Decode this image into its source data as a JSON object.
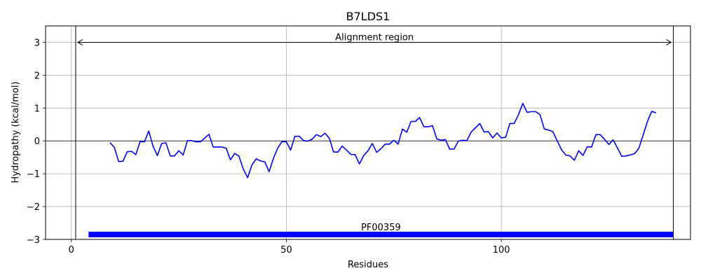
{
  "chart_data": {
    "type": "line",
    "title": "B7LDS1",
    "xlabel": "Residues",
    "ylabel": "Hydropathy (kcal/mol)",
    "xlim": [
      -6,
      144
    ],
    "ylim": [
      -3,
      3.5
    ],
    "xticks": [
      0,
      50,
      100
    ],
    "yticks": [
      -3,
      -2,
      -1,
      0,
      1,
      2,
      3
    ],
    "grid": true,
    "zero_line": true,
    "alignment_region": {
      "label": "Alignment region",
      "start": 1,
      "end": 140,
      "y": 3
    },
    "domain_bar": {
      "label": "PF00359",
      "start": 4,
      "end": 140,
      "y": -2.85
    },
    "series": [
      {
        "color": "#0000ff",
        "x": [
          9,
          10,
          11,
          12,
          13,
          14,
          15,
          16,
          17,
          18,
          19,
          20,
          21,
          22,
          23,
          24,
          25,
          26,
          27,
          28,
          29,
          30,
          31,
          32,
          33,
          34,
          35,
          36,
          37,
          38,
          39,
          40,
          41,
          42,
          43,
          44,
          45,
          46,
          47,
          48,
          49,
          50,
          51,
          52,
          53,
          54,
          55,
          56,
          57,
          58,
          59,
          60,
          61,
          62,
          63,
          64,
          65,
          66,
          67,
          68,
          69,
          70,
          71,
          72,
          73,
          74,
          75,
          76,
          77,
          78,
          79,
          80,
          81,
          82,
          83,
          84,
          85,
          86,
          87,
          88,
          89,
          90,
          91,
          92,
          93,
          94,
          95,
          96,
          97,
          98,
          99,
          100,
          101,
          102,
          103,
          104,
          105,
          106,
          107,
          108,
          109,
          110,
          111,
          112,
          113,
          114,
          115,
          116,
          117,
          118,
          119,
          120,
          121,
          122,
          123,
          124,
          125,
          126,
          127,
          128,
          129,
          130,
          131,
          132,
          133,
          134,
          135,
          136
        ],
        "y": [
          -0.05,
          -0.2,
          -0.63,
          -0.62,
          -0.33,
          -0.32,
          -0.42,
          -0.02,
          -0.03,
          0.3,
          -0.16,
          -0.45,
          -0.08,
          -0.06,
          -0.46,
          -0.46,
          -0.3,
          -0.43,
          0.01,
          0.01,
          -0.03,
          -0.03,
          0.08,
          0.2,
          -0.19,
          -0.19,
          -0.19,
          -0.22,
          -0.58,
          -0.38,
          -0.47,
          -0.86,
          -1.12,
          -0.73,
          -0.55,
          -0.61,
          -0.64,
          -0.94,
          -0.53,
          -0.22,
          -0.02,
          -0.03,
          -0.28,
          0.14,
          0.14,
          0.01,
          -0.01,
          0.05,
          0.19,
          0.13,
          0.23,
          0.08,
          -0.34,
          -0.34,
          -0.16,
          -0.28,
          -0.41,
          -0.42,
          -0.7,
          -0.45,
          -0.3,
          -0.08,
          -0.35,
          -0.24,
          -0.1,
          -0.1,
          0.02,
          -0.1,
          0.36,
          0.26,
          0.59,
          0.59,
          0.71,
          0.43,
          0.43,
          0.46,
          0.06,
          0.02,
          0.04,
          -0.25,
          -0.25,
          -0.01,
          0.02,
          0.01,
          0.27,
          0.4,
          0.53,
          0.27,
          0.28,
          0.09,
          0.24,
          0.09,
          0.11,
          0.53,
          0.53,
          0.8,
          1.14,
          0.87,
          0.89,
          0.89,
          0.8,
          0.36,
          0.33,
          0.28,
          0.0,
          -0.27,
          -0.43,
          -0.46,
          -0.59,
          -0.3,
          -0.44,
          -0.18,
          -0.19,
          0.19,
          0.19,
          0.05,
          -0.11,
          0.03,
          -0.21,
          -0.47,
          -0.46,
          -0.43,
          -0.39,
          -0.22,
          0.18,
          0.6,
          0.9,
          0.85
        ]
      }
    ]
  }
}
